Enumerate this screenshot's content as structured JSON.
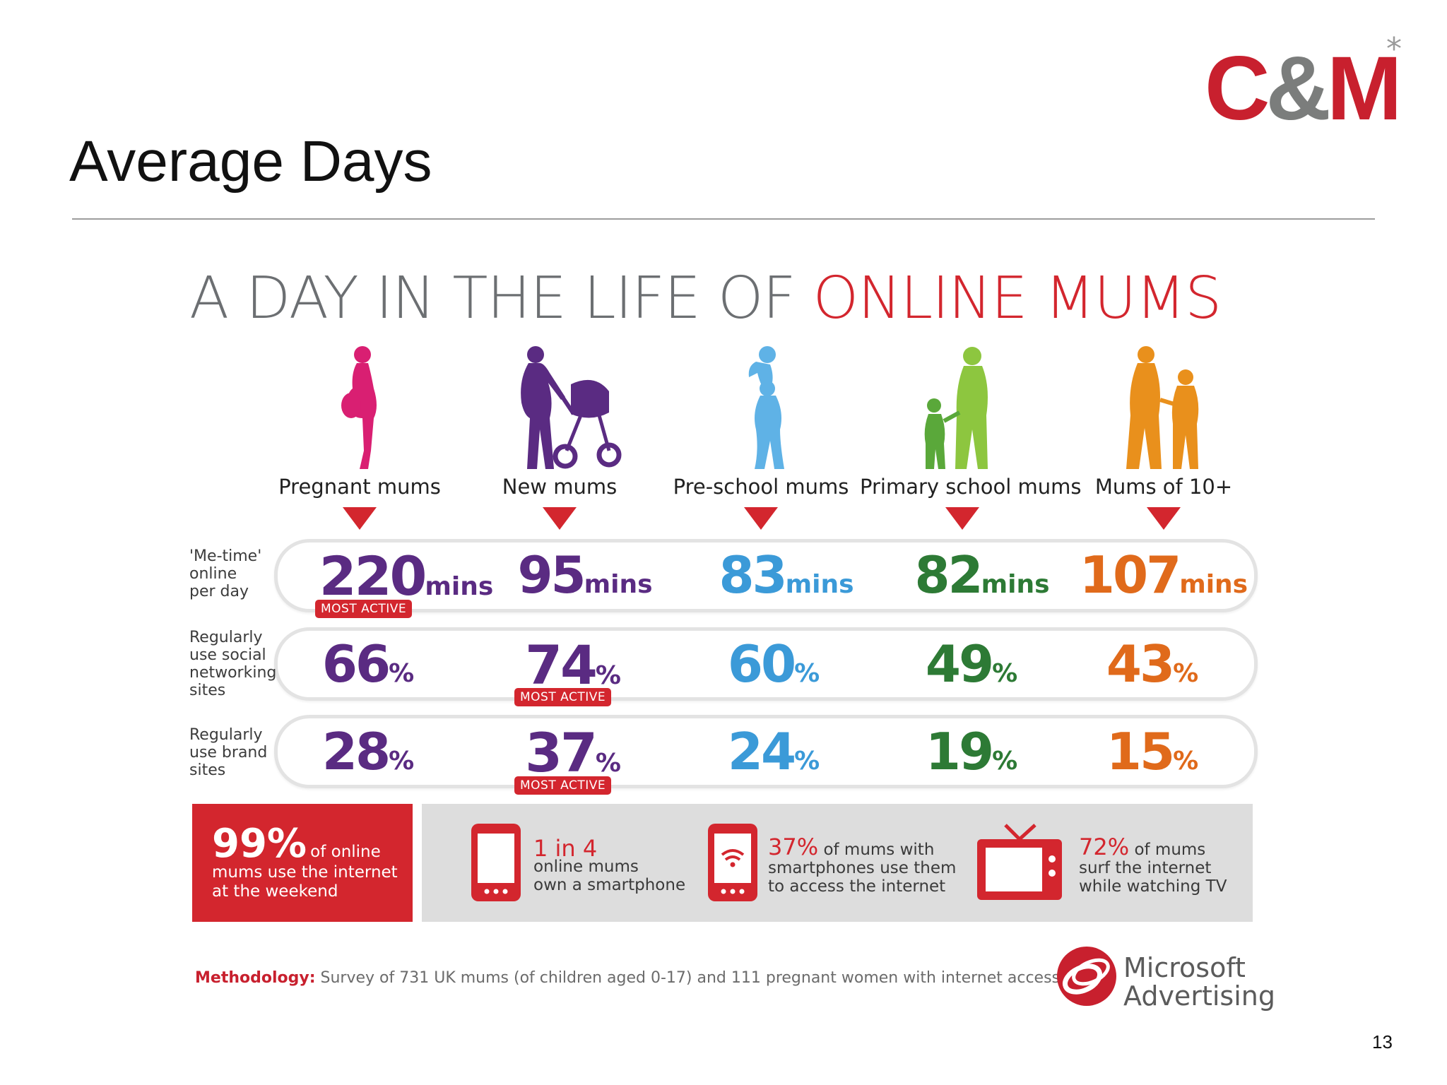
{
  "slide": {
    "title": "Average Days",
    "page_number": "13",
    "logo": {
      "part1": "C",
      "part2": "&",
      "part3": "M",
      "star": "*"
    }
  },
  "infographic": {
    "headline_part1": "A DAY IN THE LIFE OF",
    "headline_part2": "ONLINE MUMS",
    "columns": [
      {
        "label": "Pregnant mums",
        "color": "#d91f72"
      },
      {
        "label": "New mums",
        "color": "#5a2b82"
      },
      {
        "label": "Pre-school mums",
        "color": "#3b9ad8"
      },
      {
        "label": "Primary school mums",
        "color": "#2d7a35"
      },
      {
        "label": "Mums of 10+",
        "color": "#e06a1b"
      }
    ],
    "rows": [
      {
        "label_lines": [
          "'Me-time'",
          "online",
          "per day"
        ],
        "unit": "mins",
        "values": [
          "220",
          "95",
          "83",
          "82",
          "107"
        ],
        "most_active_index": 0
      },
      {
        "label_lines": [
          "Regularly",
          "use social",
          "networking",
          "sites"
        ],
        "unit": "%",
        "values": [
          "66",
          "74",
          "60",
          "49",
          "43"
        ],
        "most_active_index": 1
      },
      {
        "label_lines": [
          "Regularly",
          "use brand",
          "sites"
        ],
        "unit": "%",
        "values": [
          "28",
          "37",
          "24",
          "19",
          "15"
        ],
        "most_active_index": 1
      }
    ],
    "most_active_label": "MOST ACTIVE",
    "facts": {
      "weekend": {
        "big": "99%",
        "small": "of online",
        "line2": "mums use the internet",
        "line3": "at the weekend"
      },
      "smartphone": {
        "big": "1 in 4",
        "line2": "online mums",
        "line3": "own a smartphone"
      },
      "smartphone_internet": {
        "big": "37%",
        "small": "of mums with",
        "line2": "smartphones use them",
        "line3": "to access the internet"
      },
      "tv": {
        "big": "72%",
        "small": "of mums",
        "line2": "surf the internet",
        "line3": "while watching TV"
      }
    },
    "methodology_label": "Methodology:",
    "methodology_text": "Survey of 731 UK mums (of children aged 0-17) and 111 pregnant women with internet access",
    "ms_brand_line1": "Microsoft",
    "ms_brand_line2": "Advertising"
  },
  "colors": {
    "accent_red": "#d3262e",
    "grey_text": "#6c6f72",
    "logo_grey": "#7b7d7c"
  }
}
